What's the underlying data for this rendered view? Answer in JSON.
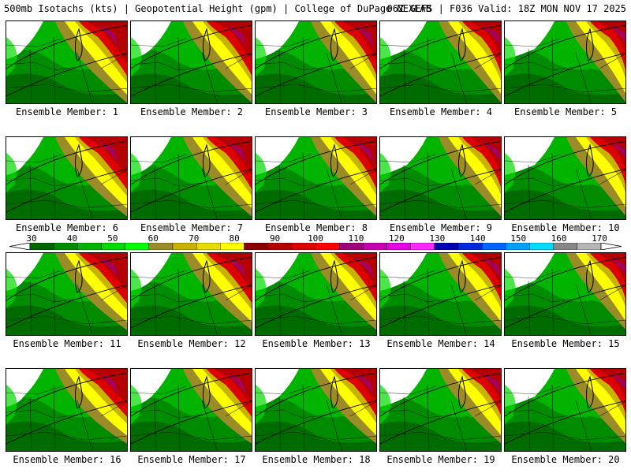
{
  "header": {
    "title_left": "500mb Isotachs (kts) | Geopotential Height (gpm) | College of DuPage NEXLAB",
    "title_right": "06Z GEFS | F036 Valid: 18Z MON NOV 17 2025"
  },
  "panels": [
    {
      "label": "Ensemble Member: 1"
    },
    {
      "label": "Ensemble Member: 2"
    },
    {
      "label": "Ensemble Member: 3"
    },
    {
      "label": "Ensemble Member: 4"
    },
    {
      "label": "Ensemble Member: 5"
    },
    {
      "label": "Ensemble Member: 6"
    },
    {
      "label": "Ensemble Member: 7"
    },
    {
      "label": "Ensemble Member: 8"
    },
    {
      "label": "Ensemble Member: 9"
    },
    {
      "label": "Ensemble Member: 10"
    },
    {
      "label": "Ensemble Member: 11"
    },
    {
      "label": "Ensemble Member: 12"
    },
    {
      "label": "Ensemble Member: 13"
    },
    {
      "label": "Ensemble Member: 14"
    },
    {
      "label": "Ensemble Member: 15"
    },
    {
      "label": "Ensemble Member: 16"
    },
    {
      "label": "Ensemble Member: 17"
    },
    {
      "label": "Ensemble Member: 18"
    },
    {
      "label": "Ensemble Member: 19"
    },
    {
      "label": "Ensemble Member: 20"
    }
  ],
  "colorbar": {
    "labels": [
      "30",
      "40",
      "50",
      "60",
      "70",
      "80",
      "90",
      "100",
      "110",
      "120",
      "130",
      "140",
      "150",
      "160",
      "170"
    ],
    "colors": [
      "#006400",
      "#008c00",
      "#00b400",
      "#00dc00",
      "#00ff00",
      "#9b8c28",
      "#c8b400",
      "#e6dc00",
      "#ffff00",
      "#8c0000",
      "#b40000",
      "#dc0000",
      "#ff0000",
      "#a00078",
      "#c800b4",
      "#e600e6",
      "#ff28ff",
      "#0000b4",
      "#0028dc",
      "#0064ff",
      "#00a0ff",
      "#00dcff",
      "#878787",
      "#b4b4b4"
    ]
  }
}
